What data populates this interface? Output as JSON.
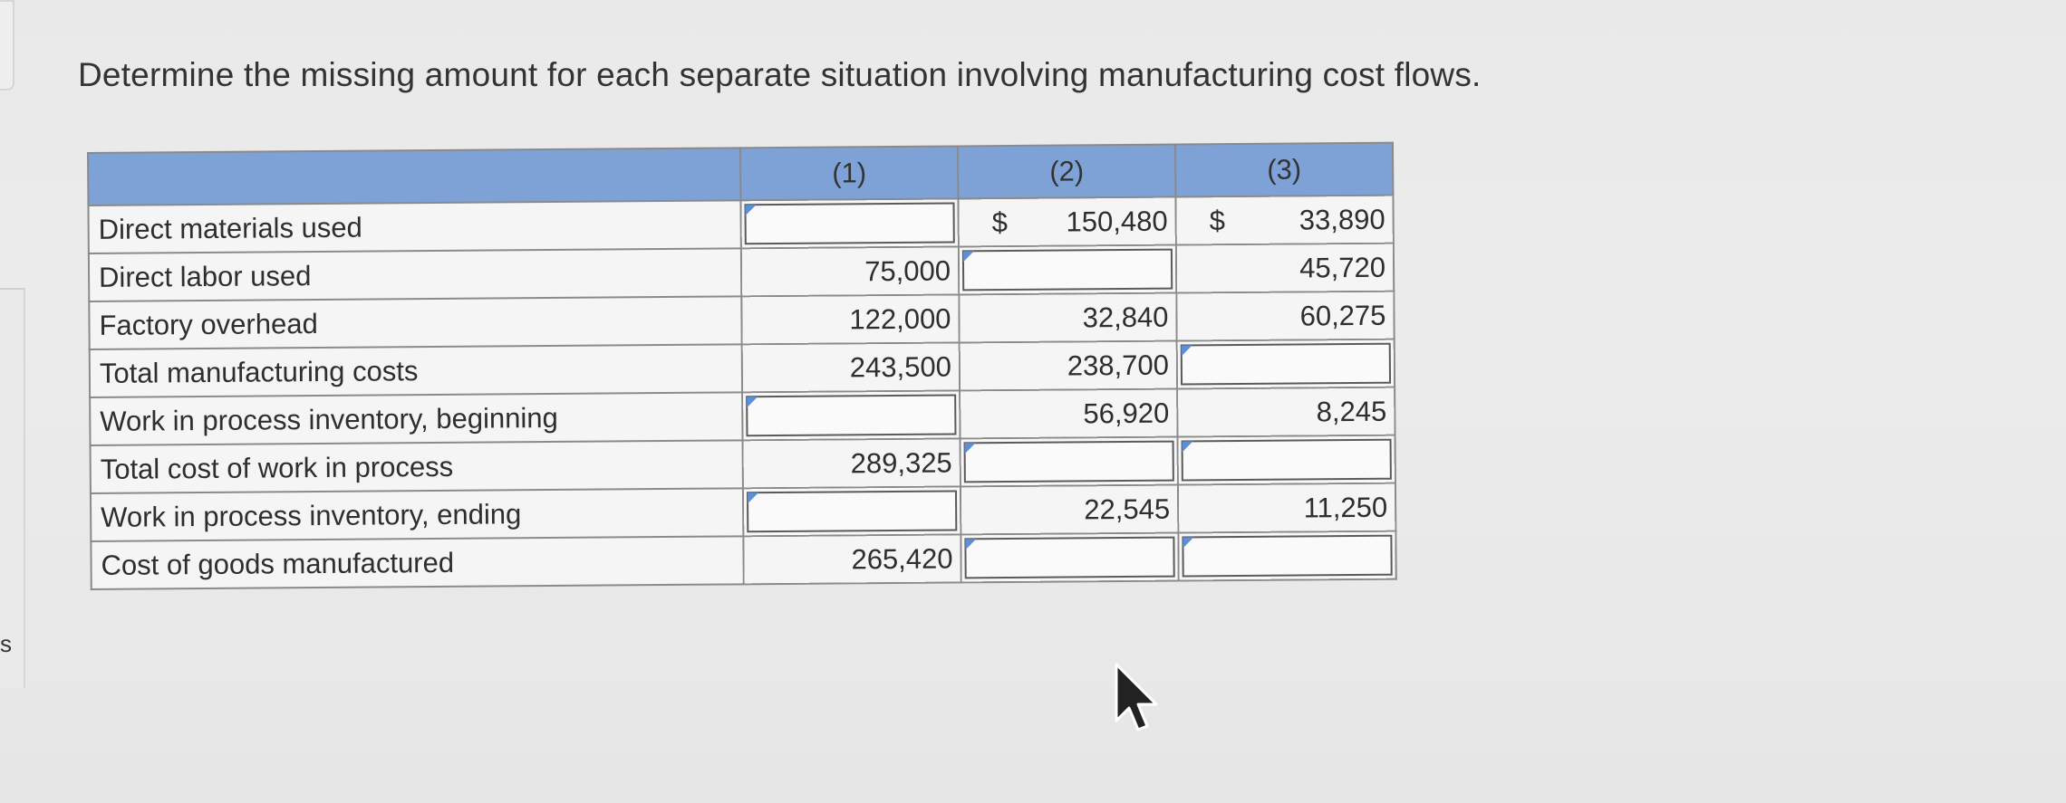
{
  "page": {
    "instruction": "Determine the missing amount for each separate situation involving manufacturing cost flows.",
    "side_letter": "s"
  },
  "table": {
    "headers": [
      "",
      "(1)",
      "(2)",
      "(3)"
    ],
    "currency_symbol": "$",
    "rows": [
      {
        "label": "Direct materials used",
        "c1": "",
        "c2": "150,480",
        "c3": "33,890"
      },
      {
        "label": "Direct labor used",
        "c1": "75,000",
        "c2": "",
        "c3": "45,720"
      },
      {
        "label": "Factory overhead",
        "c1": "122,000",
        "c2": "32,840",
        "c3": "60,275"
      },
      {
        "label": "Total manufacturing costs",
        "c1": "243,500",
        "c2": "238,700",
        "c3": ""
      },
      {
        "label": "Work in process inventory, beginning",
        "c1": "",
        "c2": "56,920",
        "c3": "8,245"
      },
      {
        "label": "Total cost of work in process",
        "c1": "289,325",
        "c2": "",
        "c3": ""
      },
      {
        "label": "Work in process inventory, ending",
        "c1": "",
        "c2": "22,545",
        "c3": "11,250"
      },
      {
        "label": "Cost of goods manufactured",
        "c1": "265,420",
        "c2": "",
        "c3": ""
      }
    ]
  },
  "colors": {
    "header_bg": "#7fa2d6",
    "input_flag": "#5c8fd6",
    "cell_border": "#8a8a8a"
  },
  "icons": {
    "cursor": "arrow-pointer-icon"
  }
}
